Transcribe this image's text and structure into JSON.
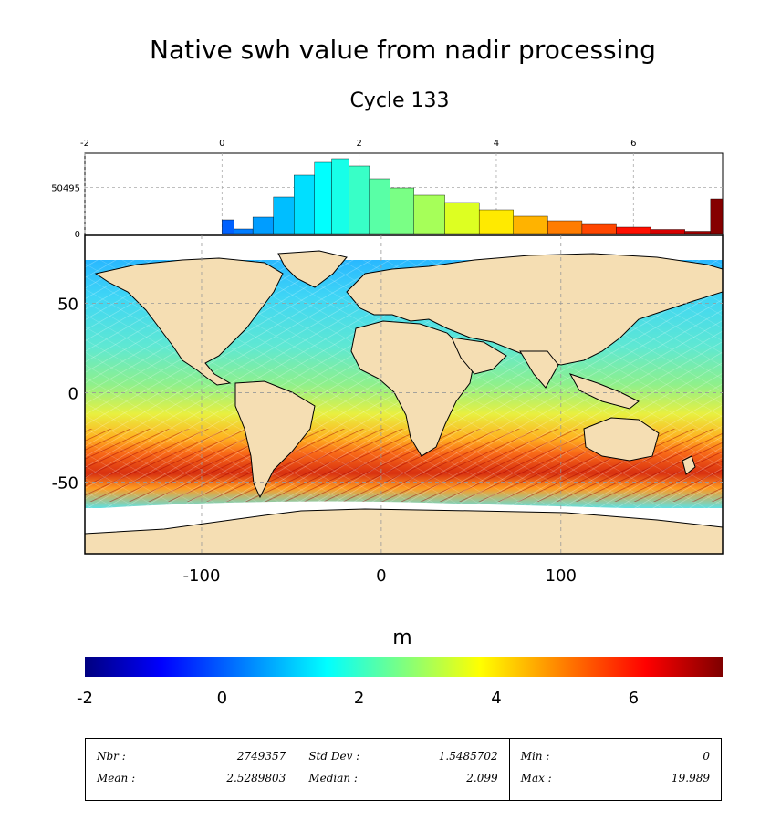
{
  "title": "Native swh value from nadir processing",
  "subtitle": "Cycle 133",
  "colorbar": {
    "label": "m",
    "ticks": [
      "-2",
      "0",
      "2",
      "4",
      "6"
    ],
    "range": [
      -2,
      7.3
    ],
    "colormap": [
      "#00007f",
      "#0000ff",
      "#007fff",
      "#00ffff",
      "#7fff7f",
      "#ffff00",
      "#ff7f00",
      "#ff0000",
      "#7f0000"
    ]
  },
  "chart_data": [
    {
      "type": "histogram",
      "x_ticks": [
        "-2",
        "0",
        "2",
        "4",
        "6"
      ],
      "xlim": [
        -2,
        7.3
      ],
      "y_ticks": [
        "0",
        "50495"
      ],
      "bins": [
        {
          "x": 0.05,
          "count": 15000
        },
        {
          "x": 0.3,
          "count": 5000
        },
        {
          "x": 0.6,
          "count": 18000
        },
        {
          "x": 0.9,
          "count": 40000
        },
        {
          "x": 1.2,
          "count": 64000
        },
        {
          "x": 1.5,
          "count": 78000
        },
        {
          "x": 1.7,
          "count": 82000
        },
        {
          "x": 2.0,
          "count": 74000
        },
        {
          "x": 2.3,
          "count": 60000
        },
        {
          "x": 2.6,
          "count": 50000
        },
        {
          "x": 3.0,
          "count": 42000
        },
        {
          "x": 3.5,
          "count": 34000
        },
        {
          "x": 4.0,
          "count": 26000
        },
        {
          "x": 4.5,
          "count": 19000
        },
        {
          "x": 5.0,
          "count": 14000
        },
        {
          "x": 5.5,
          "count": 10000
        },
        {
          "x": 6.0,
          "count": 7000
        },
        {
          "x": 6.5,
          "count": 4500
        },
        {
          "x": 7.0,
          "count": 2500
        },
        {
          "x": 7.25,
          "count": 38000
        }
      ]
    },
    {
      "type": "map",
      "variable": "swh",
      "units": "m",
      "x_ticks": [
        "-100",
        "0",
        "100"
      ],
      "y_ticks": [
        "50",
        "0",
        "-50"
      ],
      "xlim": [
        -165,
        190
      ],
      "ylim": [
        -90,
        88
      ]
    }
  ],
  "stats": [
    [
      {
        "label": "Nbr :",
        "value": "2749357"
      },
      {
        "label": "Mean :",
        "value": "2.5289803"
      }
    ],
    [
      {
        "label": "Std Dev :",
        "value": "1.5485702"
      },
      {
        "label": "Median :",
        "value": "2.099"
      }
    ],
    [
      {
        "label": "Min :",
        "value": "0"
      },
      {
        "label": "Max :",
        "value": "19.989"
      }
    ]
  ]
}
